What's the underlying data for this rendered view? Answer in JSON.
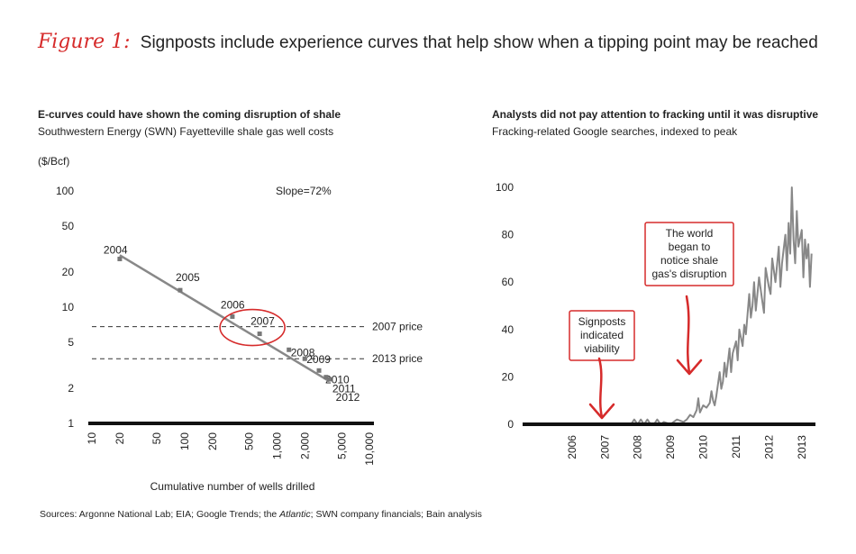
{
  "figure": {
    "label": "Figure 1:",
    "title": "Signposts include experience curves that help show when a tipping point may be reached"
  },
  "left_panel": {
    "title": "E-curves could have shown the coming disruption of shale",
    "subtitle": "Southwestern Energy (SWN) Fayetteville shale gas well costs"
  },
  "right_panel": {
    "title": "Analysts did not pay attention to fracking until it was disruptive",
    "subtitle": "Fracking-related Google searches, indexed to peak"
  },
  "sources": {
    "prefix": "Sources: Argonne National Lab; EIA; Google Trends; the ",
    "italic": "Atlantic",
    "suffix": "; SWN company financials; Bain analysis"
  },
  "chart_data": [
    {
      "type": "scatter",
      "ylabel": "($/Bcf)",
      "xlabel": "Cumulative number of wells drilled",
      "x_scale": "log",
      "y_scale": "log",
      "xlim": [
        10,
        10000
      ],
      "ylim": [
        1,
        100
      ],
      "x_ticks": [
        "10",
        "20",
        "50",
        "100",
        "200",
        "500",
        "1,000",
        "2,000",
        "5,000",
        "10,000"
      ],
      "y_ticks": [
        "1",
        "2",
        "5",
        "10",
        "20",
        "50",
        "100"
      ],
      "points": [
        {
          "label": "2004",
          "x": 20,
          "y": 26
        },
        {
          "label": "2005",
          "x": 90,
          "y": 14
        },
        {
          "label": "2006",
          "x": 330,
          "y": 8.3
        },
        {
          "label": "2007",
          "x": 650,
          "y": 5.9
        },
        {
          "label": "2008",
          "x": 1350,
          "y": 4.3
        },
        {
          "label": "2009",
          "x": 2000,
          "y": 3.6
        },
        {
          "label": "2010",
          "x": 2850,
          "y": 2.85
        },
        {
          "label": "2011",
          "x": 3400,
          "y": 2.5
        },
        {
          "label": "2012",
          "x": 3700,
          "y": 2.4
        }
      ],
      "trend_line": {
        "from": [
          20,
          28
        ],
        "to": [
          3700,
          2.3
        ]
      },
      "reference_lines": [
        {
          "label": "2007 price",
          "y": 6.8
        },
        {
          "label": "2013 price",
          "y": 3.6
        }
      ],
      "annotation": "Slope=72%",
      "highlight": "2007"
    },
    {
      "type": "line",
      "ylim": [
        0,
        100
      ],
      "y_ticks": [
        "0",
        "20",
        "40",
        "60",
        "80",
        "100"
      ],
      "xlim": [
        2005,
        2014
      ],
      "x_ticks": [
        "2006",
        "2007",
        "2008",
        "2009",
        "2010",
        "2011",
        "2012",
        "2013"
      ],
      "series": [
        {
          "points": [
            [
              2008.3,
              0
            ],
            [
              2008.4,
              2
            ],
            [
              2008.5,
              0
            ],
            [
              2008.6,
              2
            ],
            [
              2008.7,
              0
            ],
            [
              2008.8,
              2
            ],
            [
              2008.9,
              0
            ],
            [
              2009.0,
              0
            ],
            [
              2009.1,
              2
            ],
            [
              2009.2,
              0
            ],
            [
              2009.3,
              1
            ],
            [
              2009.5,
              0
            ],
            [
              2009.7,
              2
            ],
            [
              2009.9,
              1
            ],
            [
              2010.0,
              2
            ],
            [
              2010.1,
              4
            ],
            [
              2010.2,
              3
            ],
            [
              2010.3,
              6
            ],
            [
              2010.35,
              11
            ],
            [
              2010.4,
              5
            ],
            [
              2010.5,
              8
            ],
            [
              2010.6,
              7
            ],
            [
              2010.7,
              9
            ],
            [
              2010.75,
              14
            ],
            [
              2010.8,
              10
            ],
            [
              2010.85,
              8
            ],
            [
              2010.9,
              12
            ],
            [
              2011.0,
              22
            ],
            [
              2011.05,
              15
            ],
            [
              2011.1,
              18
            ],
            [
              2011.15,
              26
            ],
            [
              2011.2,
              20
            ],
            [
              2011.3,
              32
            ],
            [
              2011.35,
              22
            ],
            [
              2011.4,
              30
            ],
            [
              2011.5,
              35
            ],
            [
              2011.55,
              27
            ],
            [
              2011.6,
              40
            ],
            [
              2011.7,
              33
            ],
            [
              2011.75,
              42
            ],
            [
              2011.8,
              38
            ],
            [
              2011.9,
              55
            ],
            [
              2011.95,
              45
            ],
            [
              2012.0,
              50
            ],
            [
              2012.05,
              60
            ],
            [
              2012.1,
              48
            ],
            [
              2012.2,
              62
            ],
            [
              2012.3,
              52
            ],
            [
              2012.35,
              47
            ],
            [
              2012.4,
              66
            ],
            [
              2012.5,
              58
            ],
            [
              2012.55,
              55
            ],
            [
              2012.6,
              70
            ],
            [
              2012.7,
              60
            ],
            [
              2012.8,
              75
            ],
            [
              2012.85,
              58
            ],
            [
              2012.9,
              68
            ],
            [
              2013.0,
              80
            ],
            [
              2013.05,
              65
            ],
            [
              2013.1,
              85
            ],
            [
              2013.15,
              72
            ],
            [
              2013.2,
              100
            ],
            [
              2013.25,
              78
            ],
            [
              2013.3,
              68
            ],
            [
              2013.35,
              90
            ],
            [
              2013.4,
              75
            ],
            [
              2013.5,
              82
            ],
            [
              2013.55,
              62
            ],
            [
              2013.6,
              78
            ],
            [
              2013.65,
              70
            ],
            [
              2013.7,
              76
            ],
            [
              2013.75,
              58
            ],
            [
              2013.8,
              72
            ]
          ]
        }
      ],
      "callouts": [
        {
          "text": [
            "Signposts",
            "indicated",
            "viability"
          ],
          "x": 2007.3
        },
        {
          "text": [
            "The world",
            "began to",
            "notice shale",
            "gas's disruption"
          ],
          "x": 2010.0
        }
      ]
    }
  ]
}
